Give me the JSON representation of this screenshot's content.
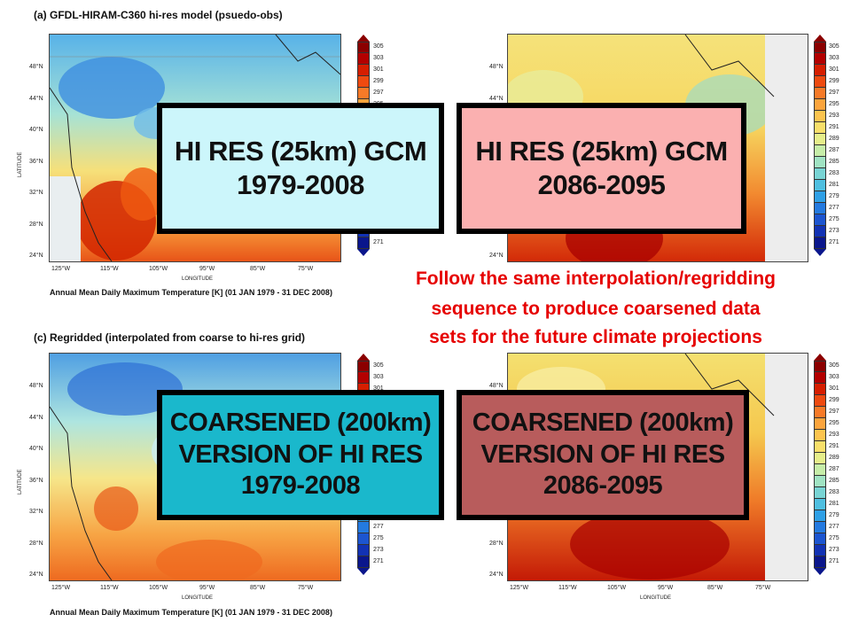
{
  "panels": {
    "top_left": {
      "title": "(a)  GFDL-HIRAM-C360 hi-res model (psuedo-obs)",
      "subtitle": "Annual Mean Daily Maximum Temperature [K]   (01 JAN 1979 - 31 DEC 2008)"
    },
    "bottom_left": {
      "title": "(c)  Regridded (interpolated from coarse to hi-res grid)",
      "subtitle": "Annual Mean Daily Maximum Temperature [K]   (01 JAN 1979 - 31 DEC 2008)"
    }
  },
  "axes": {
    "lat_ticks": [
      "48°N",
      "44°N",
      "40°N",
      "36°N",
      "32°N",
      "28°N",
      "24°N"
    ],
    "lon_ticks": [
      "125°W",
      "115°W",
      "105°W",
      "95°W",
      "85°W",
      "75°W"
    ],
    "xlabel": "LONGITUDE",
    "ylabel": "LATITUDE"
  },
  "colorbar": {
    "labels": [
      "305",
      "303",
      "301",
      "299",
      "297",
      "295",
      "293",
      "291",
      "289",
      "287",
      "285",
      "283",
      "281",
      "279",
      "277",
      "275",
      "273",
      "271"
    ],
    "colors": [
      "#8b0000",
      "#b30000",
      "#d61e00",
      "#ee4a10",
      "#f77a28",
      "#fba43c",
      "#fcc44f",
      "#f8df6a",
      "#e6ee8a",
      "#c6eda8",
      "#a0e3c3",
      "#78d4d4",
      "#4fbfe0",
      "#2fa0e6",
      "#247ae0",
      "#1c55d0",
      "#1232b4",
      "#0a168c"
    ]
  },
  "boxes": {
    "hires_current": {
      "line1": "HI RES (25km) GCM",
      "line2": "1979-2008",
      "fill": "#ccf6fb"
    },
    "hires_future": {
      "line1": "HI RES (25km) GCM",
      "line2": "2086-2095",
      "fill": "#fbb0b0"
    },
    "coarse_current": {
      "line1": "COARSENED (200km)",
      "line2": "VERSION OF HI RES",
      "line3": "1979-2008",
      "fill": "#1ab8cc"
    },
    "coarse_future": {
      "line1": "COARSENED (200km)",
      "line2": "VERSION OF HI RES",
      "line3": "2086-2095",
      "fill": "#b85c5c"
    }
  },
  "annotation": {
    "line1": "Follow the same interpolation/regridding",
    "line2": "sequence to produce coarsened data",
    "line3": "sets for the future climate projections",
    "color": "#e60000"
  }
}
